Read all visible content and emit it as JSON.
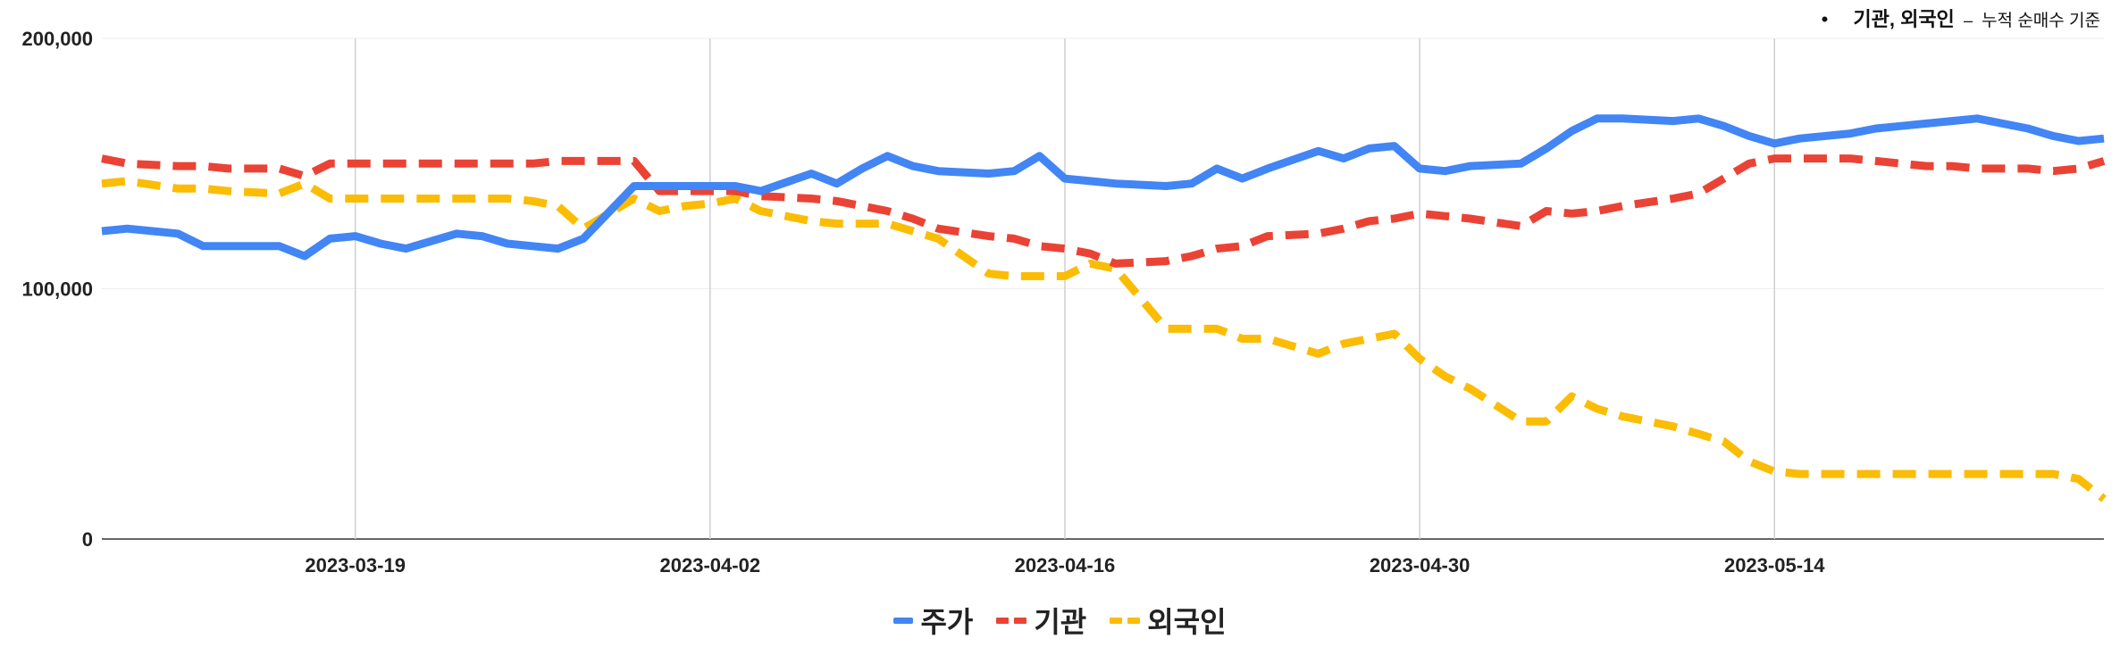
{
  "note": {
    "bullet": "•",
    "strong": "기관, 외국인",
    "dash": "–",
    "desc": "누적 순매수 기준"
  },
  "chart_data": {
    "type": "line",
    "title": "",
    "xlabel": "",
    "ylabel": "",
    "ylim": [
      0,
      200000
    ],
    "yticks": [
      0,
      100000,
      200000
    ],
    "ytick_labels": [
      "0",
      "100,000",
      "200,000"
    ],
    "xlim": [
      "2023-03-09",
      "2023-05-27"
    ],
    "xticks": [
      "2023-03-19",
      "2023-04-02",
      "2023-04-16",
      "2023-04-30",
      "2023-05-14"
    ],
    "grid": {
      "vertical": true,
      "horizontal": true
    },
    "legend_position": "bottom",
    "x": [
      "2023-03-09",
      "2023-03-10",
      "2023-03-12",
      "2023-03-13",
      "2023-03-14",
      "2023-03-16",
      "2023-03-17",
      "2023-03-18",
      "2023-03-19",
      "2023-03-20",
      "2023-03-21",
      "2023-03-23",
      "2023-03-24",
      "2023-03-25",
      "2023-03-26",
      "2023-03-27",
      "2023-03-28",
      "2023-03-30",
      "2023-03-31",
      "2023-04-01",
      "2023-04-02",
      "2023-04-03",
      "2023-04-04",
      "2023-04-06",
      "2023-04-07",
      "2023-04-08",
      "2023-04-09",
      "2023-04-10",
      "2023-04-11",
      "2023-04-13",
      "2023-04-14",
      "2023-04-15",
      "2023-04-16",
      "2023-04-17",
      "2023-04-18",
      "2023-04-20",
      "2023-04-21",
      "2023-04-22",
      "2023-04-23",
      "2023-04-24",
      "2023-04-26",
      "2023-04-27",
      "2023-04-28",
      "2023-04-29",
      "2023-04-30",
      "2023-05-01",
      "2023-05-02",
      "2023-05-04",
      "2023-05-05",
      "2023-05-06",
      "2023-05-07",
      "2023-05-08",
      "2023-05-10",
      "2023-05-11",
      "2023-05-12",
      "2023-05-13",
      "2023-05-14",
      "2023-05-15",
      "2023-05-17",
      "2023-05-18",
      "2023-05-19",
      "2023-05-20",
      "2023-05-21",
      "2023-05-22",
      "2023-05-24",
      "2023-05-25",
      "2023-05-26",
      "2023-05-27"
    ],
    "series": [
      {
        "name": "주가",
        "color": "#4285F4",
        "style": "solid",
        "values": [
          123000,
          124000,
          122000,
          117000,
          117000,
          117000,
          113000,
          120000,
          121000,
          118000,
          116000,
          122000,
          121000,
          118000,
          117000,
          116000,
          120000,
          141000,
          141000,
          141000,
          141000,
          141000,
          139000,
          146000,
          142000,
          148000,
          153000,
          149000,
          147000,
          146000,
          147000,
          153000,
          144000,
          143000,
          142000,
          141000,
          142000,
          148000,
          144000,
          148000,
          155000,
          152000,
          156000,
          157000,
          148000,
          147000,
          149000,
          150000,
          156000,
          163000,
          168000,
          168000,
          167000,
          168000,
          165000,
          161000,
          158000,
          160000,
          162000,
          164000,
          165000,
          166000,
          167000,
          168000,
          164000,
          161000,
          159000,
          160000
        ]
      },
      {
        "name": "기관",
        "color": "#EA4335",
        "style": "dashed",
        "values": [
          152000,
          150000,
          149000,
          149000,
          148000,
          148000,
          145000,
          150000,
          150000,
          150000,
          150000,
          150000,
          150000,
          150000,
          150000,
          151000,
          151000,
          151000,
          139000,
          139000,
          139000,
          139000,
          137000,
          136000,
          135000,
          133000,
          131000,
          128000,
          124000,
          121000,
          120000,
          117000,
          116000,
          114000,
          110000,
          111000,
          113000,
          116000,
          117000,
          121000,
          122000,
          124000,
          127000,
          128000,
          130000,
          129000,
          128000,
          125000,
          131000,
          130000,
          131000,
          133000,
          136000,
          138000,
          144000,
          150000,
          152000,
          152000,
          152000,
          151000,
          150000,
          149000,
          149000,
          148000,
          148000,
          147000,
          148000,
          151000
        ]
      },
      {
        "name": "외국인",
        "color": "#FBBC04",
        "style": "dashed",
        "values": [
          142000,
          143000,
          140000,
          140000,
          139000,
          138000,
          142000,
          136000,
          136000,
          136000,
          136000,
          136000,
          136000,
          136000,
          135000,
          133000,
          124000,
          136000,
          131000,
          133000,
          134000,
          136000,
          131000,
          127000,
          126000,
          126000,
          126000,
          123000,
          120000,
          106000,
          105000,
          105000,
          105000,
          110000,
          108000,
          84000,
          84000,
          84000,
          80000,
          80000,
          74000,
          78000,
          80000,
          82000,
          72000,
          65000,
          60000,
          47000,
          47000,
          57000,
          52000,
          49000,
          45000,
          42000,
          39000,
          31000,
          27000,
          26000,
          26000,
          26000,
          26000,
          26000,
          26000,
          26000,
          26000,
          26000,
          24000,
          16000
        ]
      }
    ]
  }
}
